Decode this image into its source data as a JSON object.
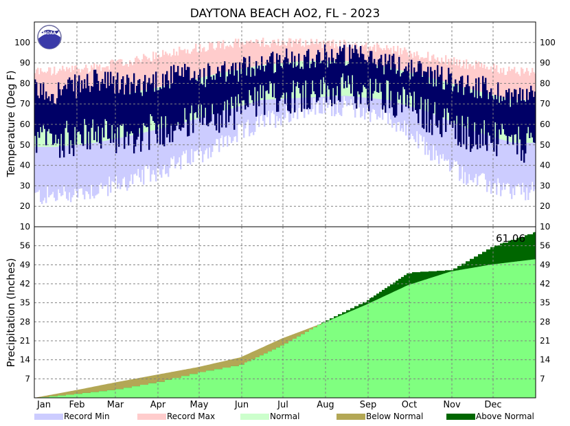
{
  "title": "DAYTONA BEACH AO2, FL - 2023",
  "chart_data": [
    {
      "type": "bar",
      "panel": "temperature",
      "ylabel": "Temperature (Deg F)",
      "ylim": [
        10,
        110
      ],
      "yticks": [
        10,
        20,
        30,
        40,
        50,
        60,
        70,
        80,
        90,
        100
      ],
      "grid": true,
      "x_range": [
        "Jan 1",
        "Dec 31"
      ],
      "monthly": {
        "months": [
          "Jan",
          "Feb",
          "Mar",
          "Apr",
          "May",
          "Jun",
          "Jul",
          "Aug",
          "Sep",
          "Oct",
          "Nov",
          "Dec"
        ],
        "record_min": [
          25,
          28,
          33,
          41,
          50,
          61,
          68,
          69,
          64,
          47,
          33,
          27
        ],
        "normal_low": [
          49,
          51,
          55,
          60,
          66,
          72,
          73,
          74,
          72,
          66,
          57,
          51
        ],
        "normal_high": [
          70,
          72,
          76,
          80,
          85,
          89,
          91,
          91,
          88,
          83,
          77,
          72
        ],
        "record_max": [
          86,
          88,
          91,
          96,
          99,
          100,
          100,
          99,
          97,
          93,
          89,
          86
        ],
        "observed_low": [
          52,
          55,
          54,
          60,
          63,
          72,
          75,
          76,
          74,
          64,
          55,
          50
        ],
        "observed_high": [
          76,
          81,
          79,
          84,
          84,
          90,
          93,
          94,
          90,
          85,
          79,
          74
        ]
      }
    },
    {
      "type": "area",
      "panel": "precipitation",
      "ylabel": "Precipitation (Inches)",
      "ylim": [
        0,
        63
      ],
      "yticks": [
        7,
        14,
        21,
        28,
        35,
        42,
        49,
        56
      ],
      "grid": true,
      "x": [
        1,
        31,
        59,
        90,
        120,
        151,
        181,
        212,
        243,
        273,
        304,
        334,
        365
      ],
      "normal_cumulative": [
        0,
        2.8,
        5.6,
        8.5,
        11.3,
        14.9,
        21.8,
        27.7,
        34.4,
        41.5,
        46.5,
        49.1,
        51.0
      ],
      "observed_cumulative": [
        0,
        1.5,
        3.1,
        5.9,
        9.5,
        12.3,
        19.5,
        28.3,
        36.0,
        46.2,
        47.1,
        55.8,
        61.06
      ],
      "annotation": "61.06"
    }
  ],
  "legend": [
    {
      "label": "Record Min",
      "color": "#ccccff"
    },
    {
      "label": "Record Max",
      "color": "#ffcccc"
    },
    {
      "label": "Normal",
      "color": "#ccffcc"
    },
    {
      "label": "Below Normal",
      "color": "#b3a755"
    },
    {
      "label": "Above Normal",
      "color": "#006600"
    }
  ],
  "colors": {
    "observed": "#000066",
    "normal_precip": "#80ff80"
  },
  "logo_text": "NOAA"
}
